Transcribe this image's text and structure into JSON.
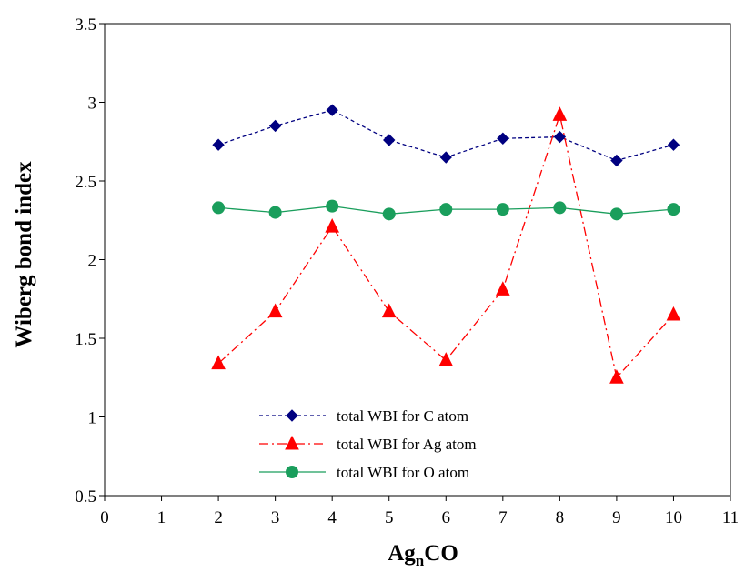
{
  "chart_data": {
    "type": "line",
    "xlabel": {
      "base": "Ag",
      "subscript": "n",
      "suffix": "CO"
    },
    "ylabel": "Wiberg bond index",
    "xlim": [
      0,
      11
    ],
    "ylim": [
      0.5,
      3.5
    ],
    "x_ticks": [
      "0",
      "1",
      "2",
      "3",
      "4",
      "5",
      "6",
      "7",
      "8",
      "9",
      "10",
      "11"
    ],
    "y_ticks": [
      "0.5",
      "1",
      "1.5",
      "2",
      "2.5",
      "3",
      "3.5"
    ],
    "x": [
      2,
      3,
      4,
      5,
      6,
      7,
      8,
      9,
      10
    ],
    "grid": false,
    "legend_position": "lower-center",
    "series": [
      {
        "name": "total WBI for C atom",
        "values": [
          2.73,
          2.85,
          2.95,
          2.76,
          2.65,
          2.77,
          2.78,
          2.63,
          2.73
        ],
        "color": "#000080",
        "marker": "diamond",
        "dash": "4,3"
      },
      {
        "name": "total WBI for Ag atom",
        "values": [
          1.34,
          1.67,
          2.21,
          1.67,
          1.36,
          1.81,
          2.92,
          1.25,
          1.65
        ],
        "color": "#ff0000",
        "marker": "triangle",
        "dash": "10,4,2,4"
      },
      {
        "name": "total WBI for O atom",
        "values": [
          2.33,
          2.3,
          2.34,
          2.29,
          2.32,
          2.32,
          2.33,
          2.29,
          2.32
        ],
        "color": "#1a9e5c",
        "marker": "circle",
        "dash": ""
      }
    ]
  }
}
